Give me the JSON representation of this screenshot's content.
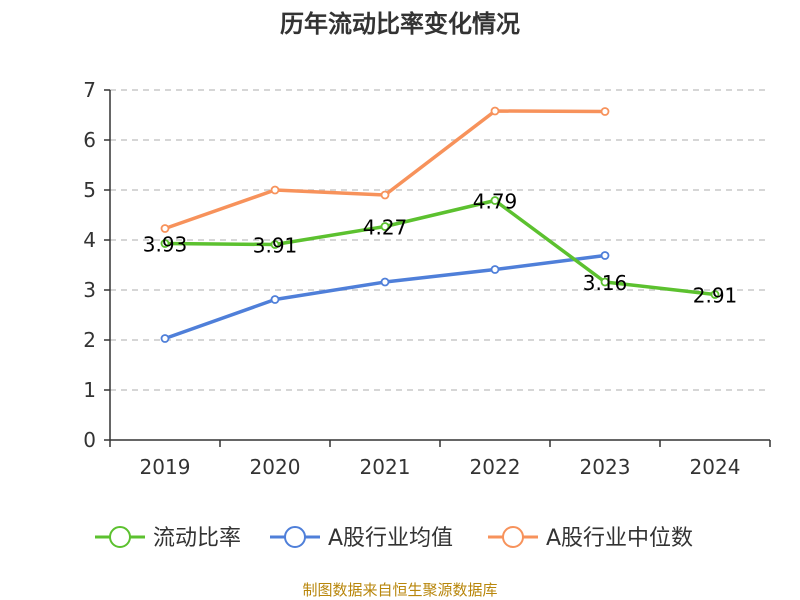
{
  "source_text": "制图数据来自恒生聚源数据库",
  "chart_data": {
    "type": "line",
    "title": "历年流动比率变化情况",
    "xlabel": "",
    "ylabel": "",
    "categories": [
      "2019",
      "2020",
      "2021",
      "2022",
      "2023",
      "2024"
    ],
    "ylim": [
      0,
      7
    ],
    "yticks": [
      0,
      1,
      2,
      3,
      4,
      5,
      6,
      7
    ],
    "grid": true,
    "legend_position": "bottom",
    "series": [
      {
        "name": "流动比率",
        "color": "#5cc12f",
        "values": [
          3.93,
          3.91,
          4.27,
          4.79,
          3.16,
          2.91
        ],
        "labels": [
          "3.93",
          "3.91",
          "4.27",
          "4.79",
          "3.16",
          "2.91"
        ]
      },
      {
        "name": "A股行业均值",
        "color": "#4f7fd9",
        "values": [
          2.03,
          2.81,
          3.16,
          3.41,
          3.69,
          null
        ],
        "labels": null
      },
      {
        "name": "A股行业中位数",
        "color": "#f7925b",
        "values": [
          4.23,
          5.0,
          4.9,
          6.58,
          6.57,
          null
        ],
        "labels": null
      }
    ]
  }
}
